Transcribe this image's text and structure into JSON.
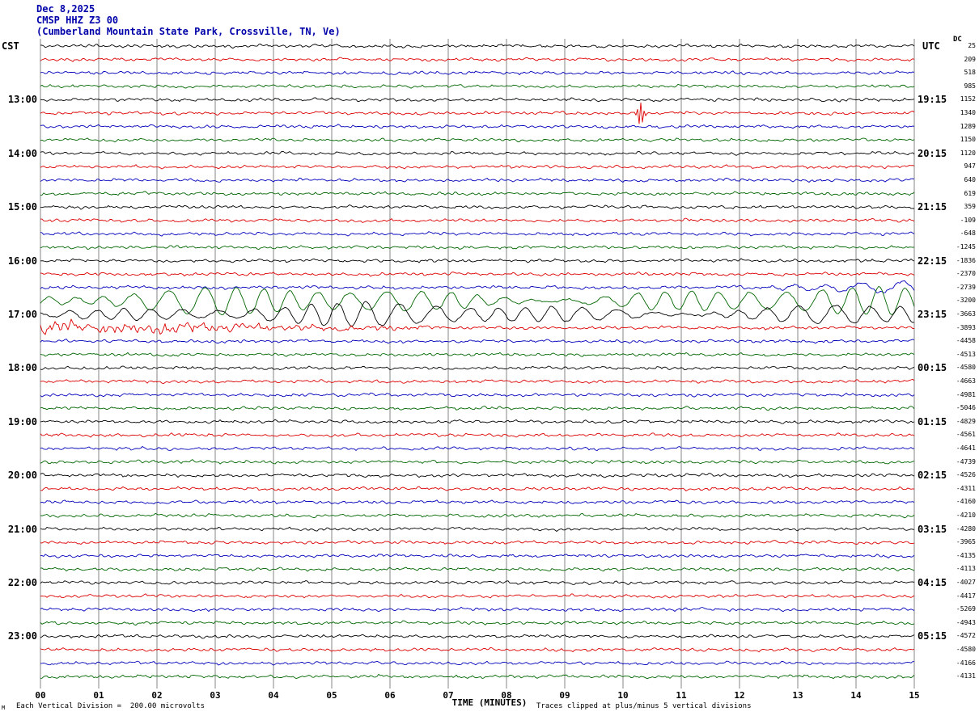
{
  "header": {
    "date": "Dec 8,2025",
    "station": "CMSP HHZ Z3 00",
    "location": "(Cumberland Mountain State Park, Crossville, TN, Ve)"
  },
  "axis": {
    "left_timezone": "CST",
    "right_timezone": "UTC",
    "dc_label": "DC",
    "x_label": "TIME (MINUTES)",
    "x_ticks": [
      "00",
      "01",
      "02",
      "03",
      "04",
      "05",
      "06",
      "07",
      "08",
      "09",
      "10",
      "11",
      "12",
      "13",
      "14",
      "15"
    ]
  },
  "footer": {
    "scale_note": "Each Vertical Division =  200.00 microvolts",
    "clip_note": "Traces clipped at plus/minus 5 vertical divisions",
    "corner_mark": "M"
  },
  "palette": {
    "black": "#000000",
    "red": "#dd0000",
    "blue": "#0000bb",
    "green": "#006600",
    "header_blue": "#0000aa",
    "grid": "#666666"
  },
  "chart_data": {
    "type": "line",
    "title": "CMSP HHZ Z3 00 helicorder record, Dec 8,2025",
    "xlabel": "TIME (MINUTES)",
    "x_range_minutes": [
      0,
      15
    ],
    "minutes_per_line": 15,
    "vertical_division_microvolts": 200.0,
    "clip_divisions": 5,
    "trace_color_cycle": [
      "black",
      "red",
      "blue",
      "green"
    ],
    "rows": [
      {
        "color": "black",
        "dc": 25
      },
      {
        "color": "red",
        "dc": 209
      },
      {
        "color": "blue",
        "dc": 518
      },
      {
        "color": "green",
        "dc": 985
      },
      {
        "color": "black",
        "dc": 1152,
        "cst": "13:00",
        "utc": "19:15"
      },
      {
        "color": "red",
        "dc": 1340,
        "style": "spike",
        "event_minute": 10.3
      },
      {
        "color": "blue",
        "dc": 1289
      },
      {
        "color": "green",
        "dc": 1150
      },
      {
        "color": "black",
        "dc": 1120,
        "cst": "14:00",
        "utc": "20:15"
      },
      {
        "color": "red",
        "dc": 947
      },
      {
        "color": "blue",
        "dc": 640
      },
      {
        "color": "green",
        "dc": 619
      },
      {
        "color": "black",
        "dc": 359,
        "cst": "15:00",
        "utc": "21:15"
      },
      {
        "color": "red",
        "dc": -109
      },
      {
        "color": "blue",
        "dc": -648
      },
      {
        "color": "green",
        "dc": -1245
      },
      {
        "color": "black",
        "dc": -1836,
        "cst": "16:00",
        "utc": "22:15"
      },
      {
        "color": "red",
        "dc": -2370
      },
      {
        "color": "blue",
        "dc": -2739,
        "style": "ramp_end",
        "amp": 3
      },
      {
        "color": "green",
        "dc": -3200,
        "style": "surface",
        "amp": 3.5
      },
      {
        "color": "black",
        "dc": -3663,
        "cst": "17:00",
        "utc": "23:15",
        "style": "surface",
        "amp": 3
      },
      {
        "color": "red",
        "dc": -3893,
        "style": "decay_start",
        "amp": 2.2
      },
      {
        "color": "blue",
        "dc": -4458
      },
      {
        "color": "green",
        "dc": -4513
      },
      {
        "color": "black",
        "dc": -4580,
        "cst": "18:00",
        "utc": "00:15"
      },
      {
        "color": "red",
        "dc": -4663
      },
      {
        "color": "blue",
        "dc": -4981
      },
      {
        "color": "green",
        "dc": -5046
      },
      {
        "color": "black",
        "dc": -4829,
        "cst": "19:00",
        "utc": "01:15"
      },
      {
        "color": "red",
        "dc": -4561
      },
      {
        "color": "blue",
        "dc": -4641
      },
      {
        "color": "green",
        "dc": -4739
      },
      {
        "color": "black",
        "dc": -4526,
        "cst": "20:00",
        "utc": "02:15"
      },
      {
        "color": "red",
        "dc": -4311
      },
      {
        "color": "blue",
        "dc": -4160
      },
      {
        "color": "green",
        "dc": -4210
      },
      {
        "color": "black",
        "dc": -4280,
        "cst": "21:00",
        "utc": "03:15"
      },
      {
        "color": "red",
        "dc": -3965
      },
      {
        "color": "blue",
        "dc": -4135
      },
      {
        "color": "green",
        "dc": -4113
      },
      {
        "color": "black",
        "dc": -4027,
        "cst": "22:00",
        "utc": "04:15"
      },
      {
        "color": "red",
        "dc": -4417
      },
      {
        "color": "blue",
        "dc": -5269
      },
      {
        "color": "green",
        "dc": -4943
      },
      {
        "color": "black",
        "dc": -4572,
        "cst": "23:00",
        "utc": "05:15"
      },
      {
        "color": "red",
        "dc": -4580
      },
      {
        "color": "blue",
        "dc": -4166
      },
      {
        "color": "green",
        "dc": -4131
      }
    ],
    "events": [
      {
        "row_cst": "13:15",
        "minute": 10.3,
        "description": "small impulsive red spike on the 13:15 CST trace"
      },
      {
        "row_cst": "16:30-17:15",
        "description": "large long-period oscillations (teleseism surface waves) strongest on the 16:45 green and 17:00 black traces, building at the end of the 16:30 blue trace and decaying through the start of the 17:15 red trace"
      }
    ]
  }
}
